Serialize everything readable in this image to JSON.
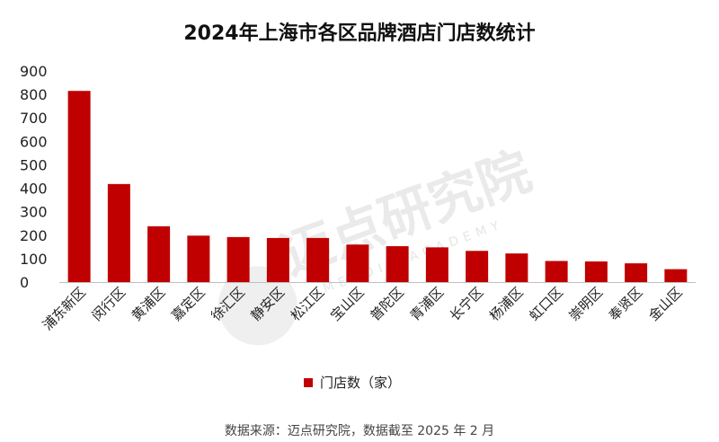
{
  "chart_data": {
    "type": "bar",
    "title": "2024年上海市各区品牌酒店门店数统计",
    "categories": [
      "浦东新区",
      "闵行区",
      "黄浦区",
      "嘉定区",
      "徐汇区",
      "静安区",
      "松江区",
      "宝山区",
      "普陀区",
      "青浦区",
      "长宁区",
      "杨浦区",
      "虹口区",
      "崇明区",
      "奉贤区",
      "金山区"
    ],
    "series": [
      {
        "name": "门店数（家）",
        "color": "#c00000",
        "values": [
          815,
          418,
          238,
          198,
          192,
          188,
          188,
          160,
          153,
          148,
          133,
          122,
          90,
          88,
          80,
          55
        ]
      }
    ],
    "yticks": [
      0,
      100,
      200,
      300,
      400,
      500,
      600,
      700,
      800,
      900
    ],
    "ylim": [
      0,
      900
    ],
    "xlabel": "",
    "ylabel": "",
    "grid": false,
    "legend": "bottom-center"
  },
  "source_note": "数据来源：迈点研究院，数据截至 2025 年 2 月",
  "watermark": {
    "main": "迈点研究院",
    "sub": "MEADIN ACADEMY"
  }
}
